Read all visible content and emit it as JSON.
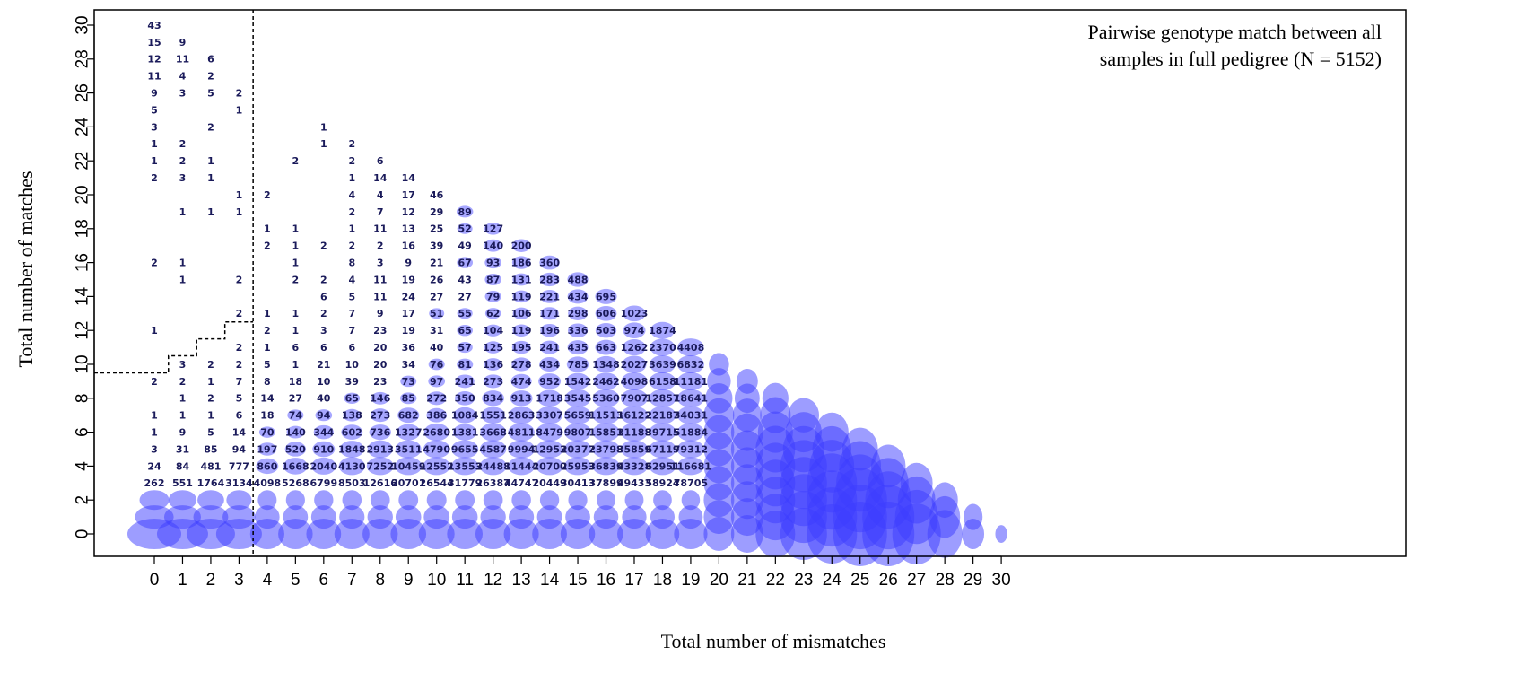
{
  "chart_data": {
    "type": "scatter",
    "subtype": "bubble-count-grid",
    "title_lines": [
      "Pairwise genotype match between all",
      "samples in full pedigree (N = 5152)"
    ],
    "title_placement": "top-right",
    "xlabel": "Total number of mismatches",
    "ylabel": "Total number of matches",
    "xlim": [
      0,
      30
    ],
    "ylim": [
      0,
      30
    ],
    "xticks": [
      0,
      1,
      2,
      3,
      4,
      5,
      6,
      7,
      8,
      9,
      10,
      11,
      12,
      13,
      14,
      15,
      16,
      17,
      18,
      19,
      20,
      21,
      22,
      23,
      24,
      25,
      26,
      27,
      28,
      29,
      30
    ],
    "yticks": [
      0,
      2,
      4,
      6,
      8,
      10,
      12,
      14,
      16,
      18,
      20,
      22,
      24,
      26,
      28,
      30
    ],
    "grid": false,
    "bubble_color": "#3c3cff",
    "label_color": "#1a1a5a",
    "threshold_line": {
      "style": "dashed",
      "color": "#000000",
      "vertical_at_x": 3.5,
      "steps": [
        [
          -1,
          9.5
        ],
        [
          0.5,
          9.5
        ],
        [
          0.5,
          10.5
        ],
        [
          1.5,
          10.5
        ],
        [
          1.5,
          11.5
        ],
        [
          2.5,
          11.5
        ],
        [
          2.5,
          12.5
        ],
        [
          3.5,
          12.5
        ]
      ]
    },
    "labeled_counts": {
      "0": {
        "30": "43",
        "29": "15",
        "28": "12",
        "27": "11",
        "26": "9",
        "25": "5",
        "24": "3",
        "23": "1",
        "22": "1",
        "21": "2",
        "16": "2",
        "12": "1",
        "9": "2",
        "7": "1",
        "6": "1",
        "5": "3",
        "4": "24",
        "3": "262"
      },
      "1": {
        "29": "9",
        "28": "11",
        "27": "4",
        "26": "3",
        "23": "2",
        "22": "2",
        "21": "3",
        "19": "1",
        "16": "1",
        "15": "1",
        "10": "3",
        "9": "2",
        "8": "1",
        "7": "1",
        "6": "9",
        "5": "31",
        "4": "84",
        "3": "551"
      },
      "2": {
        "28": "6",
        "27": "2",
        "26": "5",
        "24": "2",
        "22": "1",
        "21": "1",
        "19": "1",
        "10": "2",
        "9": "1",
        "8": "2",
        "7": "1",
        "6": "5",
        "5": "85",
        "4": "481",
        "3": "1764"
      },
      "3": {
        "26": "2",
        "25": "1",
        "20": "1",
        "19": "1",
        "15": "2",
        "13": "2",
        "11": "2",
        "10": "2",
        "9": "7",
        "8": "5",
        "7": "6",
        "6": "14",
        "5": "94",
        "4": "777",
        "3": "3134"
      },
      "4": {
        "20": "2",
        "18": "1",
        "17": "2",
        "13": "1",
        "12": "2",
        "11": "1",
        "10": "5",
        "9": "8",
        "8": "14",
        "7": "18",
        "6": "70",
        "5": "197",
        "4": "860",
        "3": "4098"
      },
      "5": {
        "22": "2",
        "18": "1",
        "17": "1",
        "16": "1",
        "15": "2",
        "13": "1",
        "12": "1",
        "11": "6",
        "10": "1",
        "9": "18",
        "8": "27",
        "7": "74",
        "6": "140",
        "5": "520",
        "4": "1668",
        "3": "5268"
      },
      "6": {
        "24": "1",
        "23": "1",
        "17": "2",
        "15": "2",
        "14": "6",
        "13": "2",
        "12": "3",
        "11": "6",
        "10": "21",
        "9": "10",
        "8": "40",
        "7": "94",
        "6": "344",
        "5": "910",
        "4": "2040",
        "3": "6799"
      },
      "7": {
        "23": "2",
        "22": "2",
        "21": "1",
        "20": "4",
        "19": "2",
        "18": "1",
        "17": "2",
        "16": "8",
        "15": "4",
        "14": "5",
        "13": "7",
        "12": "7",
        "11": "6",
        "10": "10",
        "9": "39",
        "8": "65",
        "7": "138",
        "6": "602",
        "5": "1848",
        "4": "4130",
        "3": "8503"
      },
      "8": {
        "22": "6",
        "21": "14",
        "20": "4",
        "19": "7",
        "18": "11",
        "17": "2",
        "16": "3",
        "15": "11",
        "14": "11",
        "13": "9",
        "12": "23",
        "11": "20",
        "10": "20",
        "9": "23",
        "8": "146",
        "7": "273",
        "6": "736",
        "5": "2913",
        "4": "7252",
        "3": "12616"
      },
      "9": {
        "21": "14",
        "20": "17",
        "19": "12",
        "18": "13",
        "17": "16",
        "16": "9",
        "15": "19",
        "14": "24",
        "13": "17",
        "12": "19",
        "11": "36",
        "10": "34",
        "9": "73",
        "8": "85",
        "7": "682",
        "6": "1327",
        "5": "3511",
        "4": "10459",
        "3": "20701"
      },
      "10": {
        "20": "46",
        "19": "29",
        "18": "25",
        "17": "39",
        "16": "21",
        "15": "26",
        "14": "27",
        "13": "51",
        "12": "31",
        "11": "40",
        "10": "76",
        "9": "97",
        "8": "272",
        "7": "386",
        "6": "2680",
        "5": "4790",
        "4": "12552",
        "3": "26544"
      },
      "11": {
        "19": "89",
        "18": "52",
        "17": "49",
        "16": "67",
        "15": "43",
        "14": "27",
        "13": "55",
        "12": "65",
        "11": "57",
        "10": "81",
        "9": "241",
        "8": "350",
        "7": "1084",
        "6": "1381",
        "5": "9655",
        "4": "13553",
        "3": "31779"
      },
      "12": {
        "18": "127",
        "17": "140",
        "16": "93",
        "15": "87",
        "14": "79",
        "13": "62",
        "12": "104",
        "11": "125",
        "10": "136",
        "9": "273",
        "8": "834",
        "7": "1551",
        "6": "3668",
        "5": "4587",
        "4": "24488",
        "3": "26387"
      },
      "13": {
        "17": "200",
        "16": "186",
        "15": "131",
        "14": "119",
        "13": "106",
        "12": "119",
        "11": "195",
        "10": "278",
        "9": "474",
        "8": "913",
        "7": "2863",
        "6": "4811",
        "5": "9994",
        "4": "11444",
        "3": "44747"
      },
      "14": {
        "16": "360",
        "15": "283",
        "14": "221",
        "13": "171",
        "12": "196",
        "11": "241",
        "10": "434",
        "9": "952",
        "8": "1718",
        "7": "3307",
        "6": "8479",
        "5": "12953",
        "4": "20700",
        "3": "20449"
      },
      "15": {
        "15": "488",
        "14": "434",
        "13": "298",
        "12": "336",
        "11": "435",
        "10": "785",
        "9": "1542",
        "8": "3545",
        "7": "5659",
        "6": "9807",
        "5": "20377",
        "4": "25953",
        "3": "30413"
      },
      "16": {
        "14": "695",
        "13": "606",
        "12": "503",
        "11": "663",
        "10": "1348",
        "9": "2462",
        "8": "5360",
        "7": "11513",
        "6": "15851",
        "5": "23798",
        "4": "36839",
        "3": "37899"
      },
      "17": {
        "13": "1023",
        "12": "974",
        "11": "1262",
        "10": "2027",
        "9": "4098",
        "8": "7907",
        "7": "16122",
        "6": "31188",
        "5": "35859",
        "4": "43328",
        "3": "49433"
      },
      "18": {
        "12": "1874",
        "11": "2370",
        "10": "3639",
        "9": "6158",
        "8": "12857",
        "7": "22187",
        "6": "39715",
        "5": "67119",
        "4": "62951",
        "3": "58924"
      },
      "19": {
        "11": "4408",
        "10": "6832",
        "9": "11181",
        "8": "18641",
        "7": "34031",
        "6": "51884",
        "5": "79312",
        "4": "116681",
        "3": "78705"
      }
    }
  }
}
